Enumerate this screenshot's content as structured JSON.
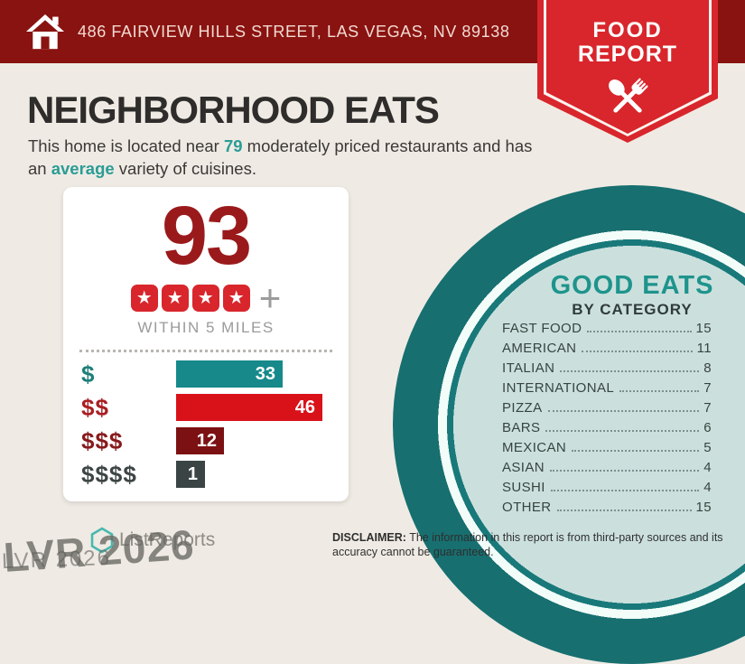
{
  "header": {
    "address": "486 FAIRVIEW HILLS STREET, LAS VEGAS, NV 89138",
    "badge_line1": "FOOD",
    "badge_line2": "REPORT"
  },
  "title": "NEIGHBORHOOD EATS",
  "subtitle": {
    "pre": "This home is located near ",
    "count": "79",
    "mid": " moderately priced restaurants and has an ",
    "highlight": "average",
    "post": " variety of cuisines."
  },
  "score_card": {
    "score": "93",
    "stars": 4,
    "plus": "+",
    "radius_label": "WITHIN 5 MILES"
  },
  "chart_data": [
    {
      "type": "bar",
      "orientation": "horizontal",
      "title": "93",
      "subtitle": "WITHIN 5 MILES",
      "categories": [
        "$",
        "$$",
        "$$$",
        "$$$$"
      ],
      "values": [
        33,
        46,
        12,
        1
      ],
      "bar_colors": [
        "#17898A",
        "#D9121A",
        "#7C1113",
        "#3A4444"
      ],
      "label_colors": [
        "#1D7F78",
        "#A81E22",
        "#871A1C",
        "#3E4545"
      ],
      "value_labels": "inside-end",
      "xlim": [
        0,
        46
      ]
    },
    {
      "type": "table",
      "title": "GOOD EATS",
      "subtitle": "BY CATEGORY",
      "categories": [
        "FAST FOOD",
        "AMERICAN",
        "ITALIAN",
        "INTERNATIONAL",
        "PIZZA",
        "BARS",
        "MEXICAN",
        "ASIAN",
        "SUSHI",
        "OTHER"
      ],
      "values": [
        15,
        11,
        8,
        7,
        7,
        6,
        5,
        4,
        4,
        15
      ]
    }
  ],
  "footer": {
    "logo_text": "ListReports",
    "watermark_large": "LVR 2026",
    "watermark_small": "LVR 2026",
    "disclaimer_label": "DISCLAIMER:",
    "disclaimer_text": " The information in this report is from third-party sources and its accuracy cannot be guaranteed."
  },
  "colors": {
    "background": "#EFEBE4",
    "header_bar": "#891310",
    "badge_red": "#D8262C",
    "score_red": "#9A1A1C",
    "accent_teal": "#2A9D96",
    "circle_teal": "#176F70",
    "circle_fill": "#CBE0DD",
    "good_eats_teal": "#1E948C"
  }
}
